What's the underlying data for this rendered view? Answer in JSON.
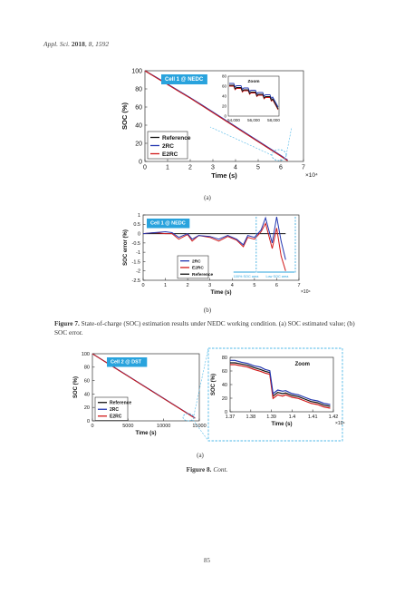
{
  "header": {
    "journal": "Appl. Sci.",
    "year": "2018",
    "volume": "8",
    "article": "1592"
  },
  "sublabels": {
    "a1": "(a)",
    "b": "(b)",
    "a2": "(a)"
  },
  "fig7_caption": {
    "label": "Figure 7.",
    "text": "State-of-charge (SOC) estimation results under NEDC working condition. (a) SOC estimated value; (b) SOC error."
  },
  "fig8_caption": {
    "label": "Figure 8.",
    "text": "Cont."
  },
  "page_number": "85",
  "colors": {
    "reference": "#111111",
    "2rc": "#2236b0",
    "e2rc": "#d11a1a",
    "badge": "#29a3dd",
    "zoom_box": "#4fb8e8"
  },
  "chart_data": [
    {
      "type": "line",
      "badge": "Cell 1 @ NEDC",
      "xlabel": "Time (s)",
      "ylabel": "SOC (%)",
      "x_multiplier": "×10⁴",
      "xlim": [
        0,
        7
      ],
      "ylim": [
        0,
        100
      ],
      "xticks": [
        "0",
        "1",
        "2",
        "3",
        "4",
        "5",
        "6",
        "7"
      ],
      "yticks": [
        "0",
        "20",
        "40",
        "60",
        "80",
        "100"
      ],
      "legend": [
        "Reference",
        "2RC",
        "E2RC"
      ],
      "legend_position": "bottom-left",
      "x": [
        0,
        0.5,
        1,
        1.5,
        2,
        2.5,
        3,
        3.5,
        4,
        4.5,
        5,
        5.5,
        6,
        6.3
      ],
      "series": [
        {
          "name": "Reference",
          "values": [
            100,
            92.5,
            85,
            77.5,
            70,
            62,
            54,
            46,
            38,
            30,
            22,
            14,
            6,
            1
          ]
        },
        {
          "name": "2RC",
          "values": [
            100,
            92.8,
            85.3,
            77.8,
            70.3,
            62.5,
            54.5,
            46.5,
            38.5,
            30.5,
            22.5,
            14.5,
            6.5,
            1.5
          ]
        },
        {
          "name": "E2RC",
          "values": [
            100,
            92.3,
            84.8,
            77.2,
            69.8,
            61.8,
            53.8,
            45.8,
            37.8,
            29.8,
            21.8,
            13.8,
            5.8,
            0.8
          ]
        }
      ],
      "inset": {
        "title": "Zoom",
        "xticks": [
          "54,000",
          "56,000",
          "58,000"
        ],
        "yticks": [
          "0",
          "20",
          "40",
          "60",
          "80"
        ]
      }
    },
    {
      "type": "line",
      "badge": "Cell 1 @ NEDC",
      "xlabel": "Time (s)",
      "ylabel": "SOC error (%)",
      "x_multiplier": "×10⁴",
      "xlim": [
        0,
        7
      ],
      "ylim": [
        -2.5,
        1
      ],
      "xticks": [
        "0",
        "1",
        "2",
        "3",
        "4",
        "5",
        "6",
        "7"
      ],
      "yticks": [
        "1",
        "0.5",
        "0",
        "-0.5",
        "-1",
        "-1.5",
        "-2",
        "-2.5"
      ],
      "legend": [
        "2RC",
        "E2RC",
        "Reference"
      ],
      "legend_position": "bottom-right",
      "annotations": [
        "100% SOC area",
        "Low SOC area"
      ],
      "x": [
        0,
        0.5,
        1,
        1.3,
        1.6,
        2,
        2.2,
        2.5,
        3,
        3.4,
        3.8,
        4.2,
        4.5,
        4.7,
        5,
        5.3,
        5.5,
        5.8,
        6,
        6.2,
        6.4
      ],
      "series": [
        {
          "name": "2RC",
          "values": [
            0,
            0.05,
            0.1,
            0.05,
            -0.2,
            0.0,
            -0.3,
            -0.1,
            -0.15,
            -0.3,
            -0.1,
            -0.3,
            -0.6,
            -0.1,
            -0.2,
            0.2,
            0.85,
            -0.5,
            0.9,
            -0.4,
            -1.4
          ]
        },
        {
          "name": "E2RC",
          "values": [
            0,
            0.05,
            0.0,
            0.0,
            -0.3,
            -0.05,
            -0.4,
            -0.1,
            -0.2,
            -0.4,
            -0.15,
            -0.35,
            -0.7,
            -0.2,
            -0.3,
            0.1,
            0.55,
            -0.8,
            0.3,
            -1.2,
            -2.0
          ]
        },
        {
          "name": "Reference",
          "values": [
            0,
            0,
            0,
            0,
            0,
            0,
            0,
            0,
            0,
            0,
            0,
            0,
            0,
            0,
            0,
            0,
            0,
            0,
            0,
            0,
            0
          ]
        }
      ]
    },
    {
      "type": "line",
      "badge": "Cell 2 @ DST",
      "xlabel": "Time (s)",
      "ylabel": "SOC (%)",
      "xlim": [
        0,
        15000
      ],
      "ylim": [
        0,
        100
      ],
      "xticks": [
        "0",
        "5000",
        "10000",
        "15000"
      ],
      "yticks": [
        "0",
        "20",
        "40",
        "60",
        "80",
        "100"
      ],
      "legend": [
        "Reference",
        "2RC",
        "E2RC"
      ],
      "legend_position": "bottom-left",
      "x": [
        0,
        3000,
        6000,
        9000,
        12000,
        14400
      ],
      "series": [
        {
          "name": "Reference",
          "values": [
            100,
            80,
            60,
            40,
            20,
            4
          ]
        },
        {
          "name": "2RC",
          "values": [
            100,
            80.3,
            60.3,
            40.3,
            20.3,
            4.3
          ]
        },
        {
          "name": "E2RC",
          "values": [
            100,
            79.8,
            59.8,
            39.8,
            19.8,
            3.8
          ]
        }
      ]
    },
    {
      "type": "line",
      "badge": "Zoom",
      "xlabel": "Time (s)",
      "ylabel": "SOC (%)",
      "x_multiplier": "×10⁴",
      "xlim": [
        1.365,
        1.43
      ],
      "ylim": [
        0,
        90
      ],
      "xticks": [
        "1.37",
        "1.38",
        "1.39",
        "1.4",
        "1.41",
        "1.42"
      ],
      "yticks": [
        "0",
        "20",
        "40",
        "60",
        "80"
      ],
      "x": [
        1.365,
        1.368,
        1.372,
        1.376,
        1.38,
        1.384,
        1.387,
        1.39,
        1.392,
        1.395,
        1.398,
        1.4,
        1.404,
        1.408,
        1.412,
        1.416,
        1.42,
        1.424,
        1.428
      ],
      "series": [
        {
          "name": "2RC",
          "values": [
            85,
            85,
            82,
            80,
            76,
            74,
            70,
            68,
            30,
            36,
            34,
            35,
            30,
            28,
            24,
            20,
            18,
            14,
            12
          ]
        },
        {
          "name": "E2RC",
          "values": [
            78,
            78,
            76,
            74,
            70,
            67,
            64,
            62,
            22,
            28,
            26,
            28,
            24,
            22,
            18,
            14,
            12,
            8,
            6
          ]
        },
        {
          "name": "Reference",
          "values": [
            81,
            81,
            79,
            77,
            73,
            70,
            67,
            65,
            26,
            32,
            30,
            31,
            27,
            25,
            21,
            17,
            15,
            11,
            9
          ]
        }
      ]
    }
  ]
}
